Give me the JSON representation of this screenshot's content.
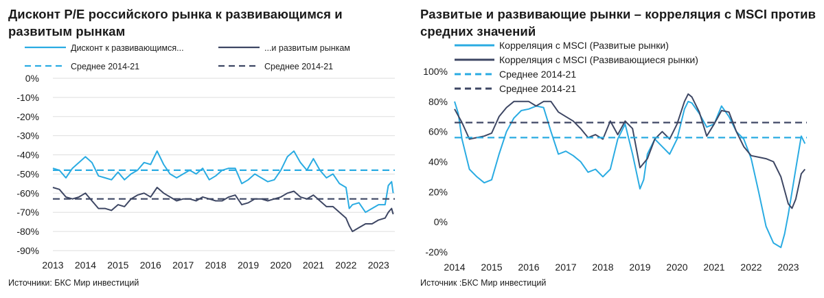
{
  "colors": {
    "light": "#29abe2",
    "dark": "#3d4663",
    "grid": "#dedede"
  },
  "left": {
    "title": "Дисконт P/E российского рынка к развивающимся и развитым рынкам",
    "source": "Источники: БКС Мир инвестиций",
    "legend": [
      "Дисконт к развивающимся...",
      "...и развитым рынкам",
      "Среднее 2014-21",
      "Среднее 2014-21"
    ],
    "y_tick_labels": [
      "0%",
      "-10%",
      "-20%",
      "-30%",
      "-40%",
      "-50%",
      "-60%",
      "-70%",
      "-80%",
      "-90%"
    ],
    "x_tick_labels": [
      "2013",
      "2014",
      "2015",
      "2016",
      "2017",
      "2018",
      "2019",
      "2020",
      "2021",
      "2022",
      "2023"
    ]
  },
  "right": {
    "title": "Развитые и развивающие рынки – корреляция с MSCI против средних значений",
    "source": "Источник :БКС Мир инвестиций",
    "legend": [
      "Корреляция с MSCI (Развитые рынки)",
      "Корреляция с MSCI (Развивающиеся рынки)",
      "Среднее 2014-21",
      "Среднее 2014-21"
    ],
    "y_tick_labels": [
      "100%",
      "80%",
      "60%",
      "40%",
      "20%",
      "0%",
      "-20%"
    ],
    "x_tick_labels": [
      "2014",
      "2015",
      "2016",
      "2017",
      "2018",
      "2019",
      "2020",
      "2021",
      "2022",
      "2023"
    ]
  },
  "chart_data": [
    {
      "type": "line",
      "title": "Дисконт P/E российского рынка к развивающимся и развитым рынкам",
      "x_range": [
        2013.0,
        2023.5
      ],
      "ylim": [
        -90,
        0
      ],
      "y_unit": "%",
      "grid": true,
      "legend_position": "top",
      "series": [
        {
          "name": "Дисконт к развивающимся...",
          "color": "#29abe2",
          "style": "solid",
          "x": [
            2013.0,
            2013.2,
            2013.4,
            2013.6,
            2013.8,
            2014.0,
            2014.2,
            2014.4,
            2014.6,
            2014.8,
            2015.0,
            2015.2,
            2015.4,
            2015.6,
            2015.8,
            2016.0,
            2016.2,
            2016.4,
            2016.6,
            2016.8,
            2017.0,
            2017.2,
            2017.4,
            2017.6,
            2017.8,
            2018.0,
            2018.2,
            2018.4,
            2018.6,
            2018.8,
            2019.0,
            2019.2,
            2019.4,
            2019.6,
            2019.8,
            2020.0,
            2020.2,
            2020.4,
            2020.6,
            2020.8,
            2021.0,
            2021.2,
            2021.4,
            2021.6,
            2021.8,
            2022.0,
            2022.1,
            2022.2,
            2022.4,
            2022.6,
            2022.8,
            2023.0,
            2023.2,
            2023.3,
            2023.4,
            2023.45
          ],
          "y": [
            -47,
            -48,
            -52,
            -47,
            -44,
            -41,
            -44,
            -51,
            -52,
            -53,
            -49,
            -53,
            -50,
            -48,
            -44,
            -45,
            -38,
            -45,
            -50,
            -52,
            -50,
            -48,
            -50,
            -47,
            -53,
            -51,
            -48,
            -47,
            -47,
            -55,
            -53,
            -50,
            -52,
            -54,
            -53,
            -48,
            -41,
            -38,
            -44,
            -48,
            -42,
            -48,
            -52,
            -50,
            -55,
            -57,
            -68,
            -66,
            -65,
            -70,
            -68,
            -66,
            -66,
            -56,
            -54,
            -60
          ]
        },
        {
          "name": "...и развитым рынкам",
          "color": "#3d4663",
          "style": "solid",
          "x": [
            2013.0,
            2013.2,
            2013.4,
            2013.6,
            2013.8,
            2014.0,
            2014.2,
            2014.4,
            2014.6,
            2014.8,
            2015.0,
            2015.2,
            2015.4,
            2015.6,
            2015.8,
            2016.0,
            2016.2,
            2016.4,
            2016.6,
            2016.8,
            2017.0,
            2017.2,
            2017.4,
            2017.6,
            2017.8,
            2018.0,
            2018.2,
            2018.4,
            2018.6,
            2018.8,
            2019.0,
            2019.2,
            2019.4,
            2019.6,
            2019.8,
            2020.0,
            2020.2,
            2020.4,
            2020.6,
            2020.8,
            2021.0,
            2021.2,
            2021.4,
            2021.6,
            2021.8,
            2022.0,
            2022.1,
            2022.2,
            2022.4,
            2022.6,
            2022.8,
            2023.0,
            2023.2,
            2023.3,
            2023.4,
            2023.45
          ],
          "y": [
            -57,
            -58,
            -62,
            -63,
            -62,
            -60,
            -64,
            -68,
            -68,
            -69,
            -66,
            -67,
            -63,
            -61,
            -60,
            -62,
            -57,
            -60,
            -62,
            -64,
            -63,
            -63,
            -64,
            -62,
            -63,
            -64,
            -64,
            -62,
            -61,
            -66,
            -65,
            -63,
            -63,
            -64,
            -63,
            -62,
            -60,
            -59,
            -62,
            -63,
            -61,
            -64,
            -67,
            -67,
            -70,
            -73,
            -77,
            -80,
            -78,
            -76,
            -76,
            -74,
            -73,
            -70,
            -68,
            -71
          ]
        },
        {
          "name": "Среднее 2014-21",
          "color": "#29abe2",
          "style": "dashed",
          "x": [
            2013.0,
            2023.5
          ],
          "y": [
            -48,
            -48
          ]
        },
        {
          "name": "Среднее 2014-21",
          "color": "#3d4663",
          "style": "dashed",
          "x": [
            2013.0,
            2023.5
          ],
          "y": [
            -63,
            -63
          ]
        }
      ]
    },
    {
      "type": "line",
      "title": "Развитые и развивающие рынки – корреляция с MSCI против средних значений",
      "x_range": [
        2014.0,
        2023.5
      ],
      "ylim": [
        -20,
        100
      ],
      "y_unit": "%",
      "grid": false,
      "legend_position": "top-left",
      "series": [
        {
          "name": "Корреляция с MSCI (Развитые рынки)",
          "color": "#29abe2",
          "style": "solid",
          "x": [
            2014.0,
            2014.1,
            2014.2,
            2014.4,
            2014.6,
            2014.8,
            2015.0,
            2015.2,
            2015.4,
            2015.6,
            2015.8,
            2016.0,
            2016.2,
            2016.4,
            2016.6,
            2016.8,
            2017.0,
            2017.2,
            2017.4,
            2017.6,
            2017.8,
            2018.0,
            2018.2,
            2018.4,
            2018.6,
            2018.8,
            2019.0,
            2019.1,
            2019.2,
            2019.4,
            2019.6,
            2019.8,
            2020.0,
            2020.2,
            2020.3,
            2020.4,
            2020.6,
            2020.8,
            2021.0,
            2021.2,
            2021.4,
            2021.6,
            2021.8,
            2022.0,
            2022.2,
            2022.4,
            2022.6,
            2022.8,
            2022.9,
            2023.0,
            2023.2,
            2023.35,
            2023.45
          ],
          "y": [
            80,
            72,
            55,
            35,
            30,
            26,
            28,
            45,
            60,
            69,
            74,
            75,
            77,
            76,
            60,
            45,
            47,
            44,
            40,
            33,
            35,
            30,
            35,
            55,
            65,
            45,
            22,
            28,
            45,
            55,
            50,
            45,
            55,
            75,
            80,
            79,
            72,
            63,
            65,
            77,
            70,
            60,
            55,
            42,
            20,
            -3,
            -14,
            -17,
            -8,
            5,
            35,
            57,
            52
          ]
        },
        {
          "name": "Корреляция с MSCI (Развивающиеся рынки)",
          "color": "#3d4663",
          "style": "solid",
          "x": [
            2014.0,
            2014.2,
            2014.4,
            2014.6,
            2014.8,
            2015.0,
            2015.2,
            2015.4,
            2015.6,
            2015.8,
            2016.0,
            2016.2,
            2016.4,
            2016.6,
            2016.8,
            2017.0,
            2017.2,
            2017.4,
            2017.6,
            2017.8,
            2018.0,
            2018.2,
            2018.4,
            2018.6,
            2018.8,
            2019.0,
            2019.2,
            2019.4,
            2019.6,
            2019.8,
            2020.0,
            2020.2,
            2020.3,
            2020.4,
            2020.6,
            2020.8,
            2021.0,
            2021.2,
            2021.4,
            2021.6,
            2021.8,
            2022.0,
            2022.2,
            2022.4,
            2022.6,
            2022.8,
            2023.0,
            2023.1,
            2023.2,
            2023.35,
            2023.45
          ],
          "y": [
            75,
            66,
            55,
            56,
            57,
            59,
            70,
            76,
            80,
            80,
            80,
            77,
            80,
            80,
            73,
            70,
            67,
            62,
            56,
            58,
            55,
            67,
            58,
            67,
            62,
            36,
            42,
            55,
            60,
            55,
            65,
            80,
            85,
            83,
            73,
            57,
            65,
            74,
            73,
            60,
            50,
            44,
            43,
            42,
            40,
            30,
            12,
            9,
            15,
            32,
            35
          ]
        },
        {
          "name": "Среднее 2014-21",
          "color": "#29abe2",
          "style": "dashed",
          "x": [
            2014.0,
            2023.5
          ],
          "y": [
            56,
            56
          ]
        },
        {
          "name": "Среднее 2014-21",
          "color": "#3d4663",
          "style": "dashed",
          "x": [
            2014.0,
            2023.5
          ],
          "y": [
            66,
            66
          ]
        }
      ]
    }
  ]
}
